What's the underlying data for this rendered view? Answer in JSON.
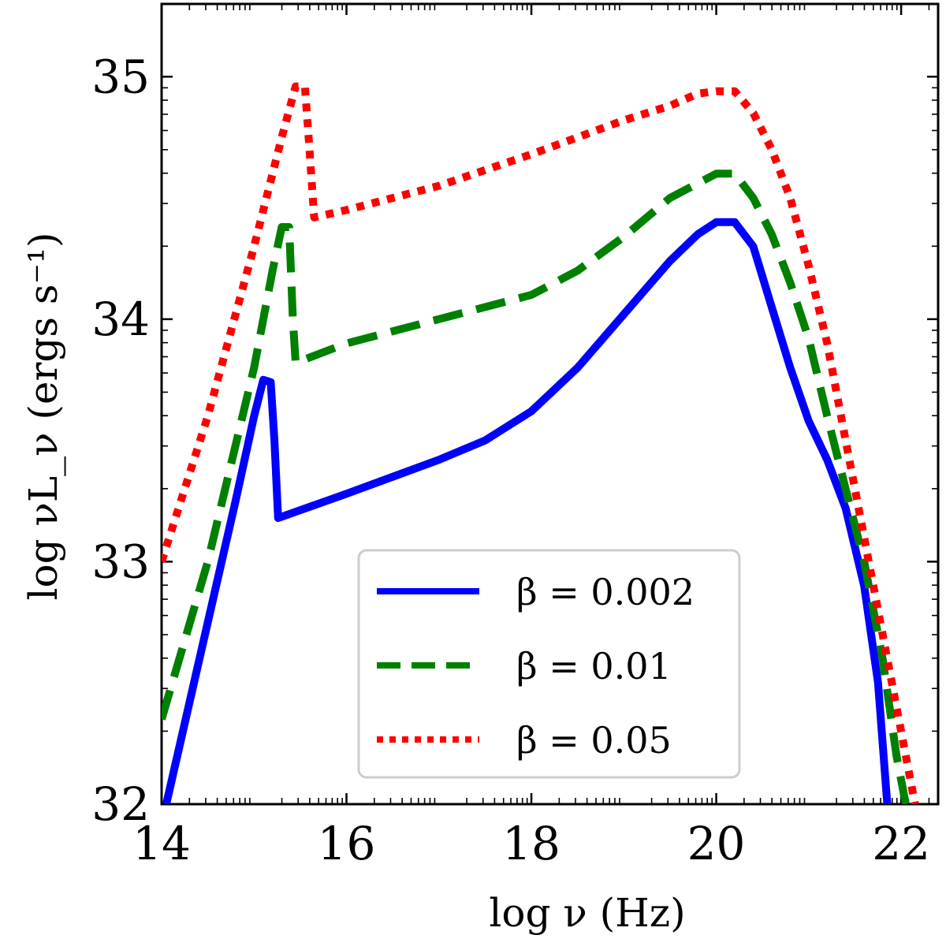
{
  "chart_data": {
    "type": "line",
    "title": "",
    "xlabel": "log ν (Hz)",
    "ylabel": "log νL_ν (ergs s⁻¹)",
    "xlim": [
      14,
      22.4
    ],
    "ylim": [
      32,
      35.3
    ],
    "xticks": [
      14,
      16,
      18,
      20,
      22
    ],
    "xtick_labels": [
      "14",
      "16",
      "18",
      "20",
      "22"
    ],
    "yticks": [
      32,
      33,
      34,
      35
    ],
    "ytick_labels": [
      "32",
      "33",
      "34",
      "35"
    ],
    "grid": false,
    "legend_location": "lower-center",
    "series": [
      {
        "name": "β = 0.002",
        "color": "#0000ff",
        "style": "solid",
        "x": [
          14.05,
          14.5,
          14.8,
          15.0,
          15.1,
          15.18,
          15.22,
          15.26,
          16.0,
          17.0,
          17.5,
          18.0,
          18.5,
          19.0,
          19.5,
          19.8,
          20.0,
          20.2,
          20.4,
          20.6,
          20.8,
          21.0,
          21.2,
          21.4,
          21.6,
          21.75,
          21.85
        ],
        "y": [
          32.0,
          32.75,
          33.25,
          33.6,
          33.75,
          33.74,
          33.5,
          33.18,
          33.28,
          33.42,
          33.5,
          33.62,
          33.8,
          34.02,
          34.24,
          34.35,
          34.4,
          34.4,
          34.3,
          34.05,
          33.8,
          33.58,
          33.42,
          33.22,
          32.9,
          32.5,
          32.0
        ]
      },
      {
        "name": "β = 0.01",
        "color": "#008000",
        "style": "dashed",
        "x": [
          14.0,
          14.5,
          15.0,
          15.2,
          15.3,
          15.38,
          15.42,
          15.45,
          16.0,
          17.0,
          18.0,
          18.5,
          19.0,
          19.5,
          19.8,
          20.0,
          20.2,
          20.4,
          20.6,
          20.8,
          21.0,
          21.2,
          21.4,
          21.6,
          21.8,
          21.95,
          22.05
        ],
        "y": [
          32.35,
          33.0,
          33.8,
          34.2,
          34.38,
          34.38,
          34.0,
          33.82,
          33.9,
          34.0,
          34.1,
          34.2,
          34.34,
          34.5,
          34.56,
          34.6,
          34.6,
          34.5,
          34.35,
          34.15,
          33.92,
          33.6,
          33.3,
          33.0,
          32.6,
          32.2,
          32.0
        ]
      },
      {
        "name": "β = 0.05",
        "color": "#ff0000",
        "style": "dotted",
        "x": [
          14.0,
          14.5,
          15.0,
          15.3,
          15.45,
          15.55,
          15.6,
          15.65,
          16.0,
          17.0,
          18.0,
          18.5,
          19.0,
          19.5,
          19.8,
          20.0,
          20.2,
          20.4,
          20.6,
          20.8,
          21.0,
          21.2,
          21.4,
          21.6,
          21.8,
          22.0,
          22.15
        ],
        "y": [
          33.0,
          33.6,
          34.3,
          34.75,
          34.96,
          34.96,
          34.7,
          34.42,
          34.45,
          34.55,
          34.68,
          34.75,
          34.82,
          34.88,
          34.93,
          34.94,
          34.94,
          34.85,
          34.7,
          34.5,
          34.22,
          33.9,
          33.5,
          33.1,
          32.7,
          32.3,
          32.0
        ]
      }
    ]
  }
}
